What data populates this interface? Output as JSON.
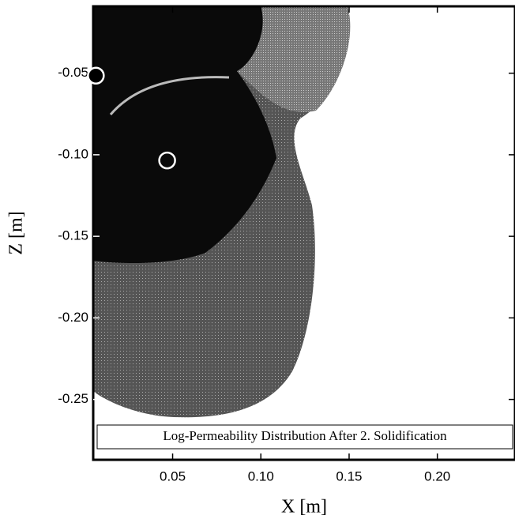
{
  "chart_data": {
    "type": "scatter",
    "annotation": "Log-Permeability Distribution After 2. Solidification",
    "x_label": "X [m]",
    "y_label": "Z [m]",
    "x": [
      0.0065,
      0.0469
    ],
    "values": [
      -0.0515,
      -0.1035
    ],
    "marker_fill": [
      "#000000",
      "none"
    ],
    "marker_stroke": "#ffffff",
    "xlim": [
      0.005,
      0.244
    ],
    "ylim": [
      -0.287,
      -0.009
    ],
    "xticks": [
      0.05,
      {
        "value": 0.1,
        "label": "0.10"
      },
      0.15,
      {
        "value": 0.2,
        "label": "0.20"
      }
    ],
    "yticks": [
      -0.05,
      {
        "value": -0.1,
        "label": "-0.10"
      },
      -0.15,
      {
        "value": -0.2,
        "label": "-0.20"
      },
      -0.25
    ]
  }
}
